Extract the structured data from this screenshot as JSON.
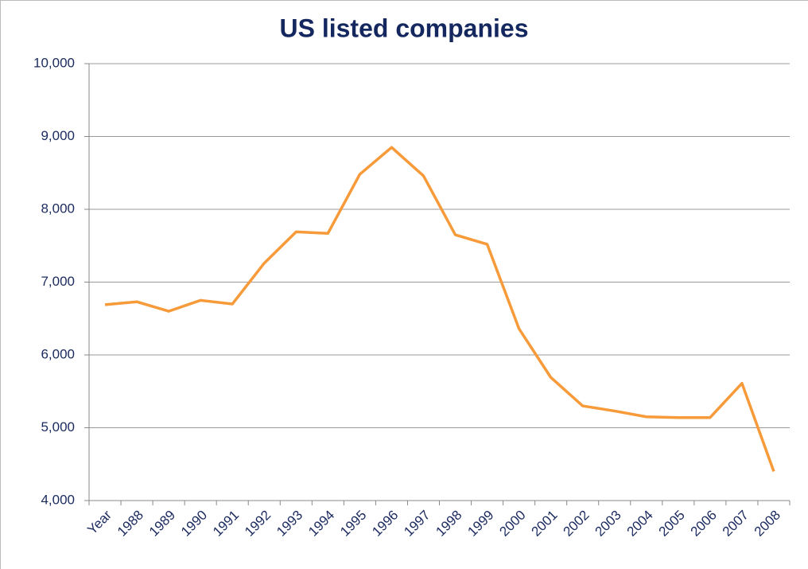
{
  "chart_data": {
    "type": "line",
    "title": "US listed companies",
    "categories": [
      "Year",
      "1988",
      "1989",
      "1990",
      "1991",
      "1992",
      "1993",
      "1994",
      "1995",
      "1996",
      "1997",
      "1998",
      "1999",
      "2000",
      "2001",
      "2002",
      "2003",
      "2004",
      "2005",
      "2006",
      "2007",
      "2008"
    ],
    "values": [
      6690,
      6730,
      6600,
      6750,
      6700,
      7260,
      7690,
      7670,
      8480,
      8850,
      8460,
      7650,
      7520,
      6360,
      5690,
      5300,
      5230,
      5150,
      5140,
      5140,
      5610,
      4400
    ],
    "color": "#f79a3a",
    "ylim": [
      4000,
      10000
    ],
    "yticks": [
      {
        "value": 4000,
        "label": "4,000"
      },
      {
        "value": 5000,
        "label": "5,000"
      },
      {
        "value": 6000,
        "label": "6,000"
      },
      {
        "value": 7000,
        "label": "7,000"
      },
      {
        "value": 8000,
        "label": "8,000"
      },
      {
        "value": 9000,
        "label": "9,000"
      },
      {
        "value": 10000,
        "label": "10,000"
      }
    ],
    "grid": true
  }
}
